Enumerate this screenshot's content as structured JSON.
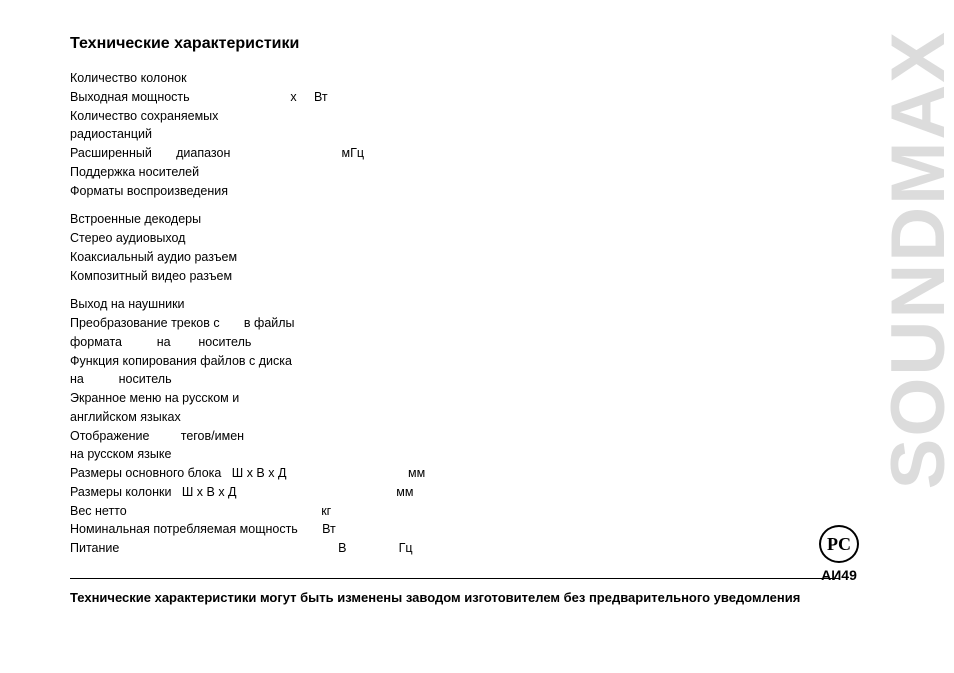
{
  "document": {
    "title": "Технические характеристики",
    "lines": [
      "Количество колонок",
      "Выходная мощность                             х     Вт",
      "Количество сохраняемых",
      "радиостанций",
      "Расширенный       диапазон                                мГц",
      "Поддержка носителей",
      "Форматы воспроизведения",
      "",
      "Встроенные декодеры",
      "Стерео аудиовыход",
      "Коаксиальный аудио разъем",
      "Композитный видео разъем",
      "",
      "Выход на наушники",
      "Преобразование треков с       в файлы",
      "формата          на        носитель",
      "Функция копирования файлов с диска",
      "на          носитель",
      "Экранное меню на русском и",
      "английском языках",
      "Отображение         тегов/имен",
      "на русском языке",
      "Размеры основного блока   Ш х В х Д                                   мм",
      "Размеры колонки   Ш х В х Д                                              мм",
      "Вес нетто                                                        кг",
      "Номинальная потребляемая мощность       Вт",
      "Питание                                                               В               Гц"
    ],
    "footer_note": "Технические характеристики могут быть изменены заводом изготовителем без предварительного уведомления",
    "brand": "SOUNDMAX",
    "cert_inner": "PC",
    "cert_code": "АИ49"
  }
}
